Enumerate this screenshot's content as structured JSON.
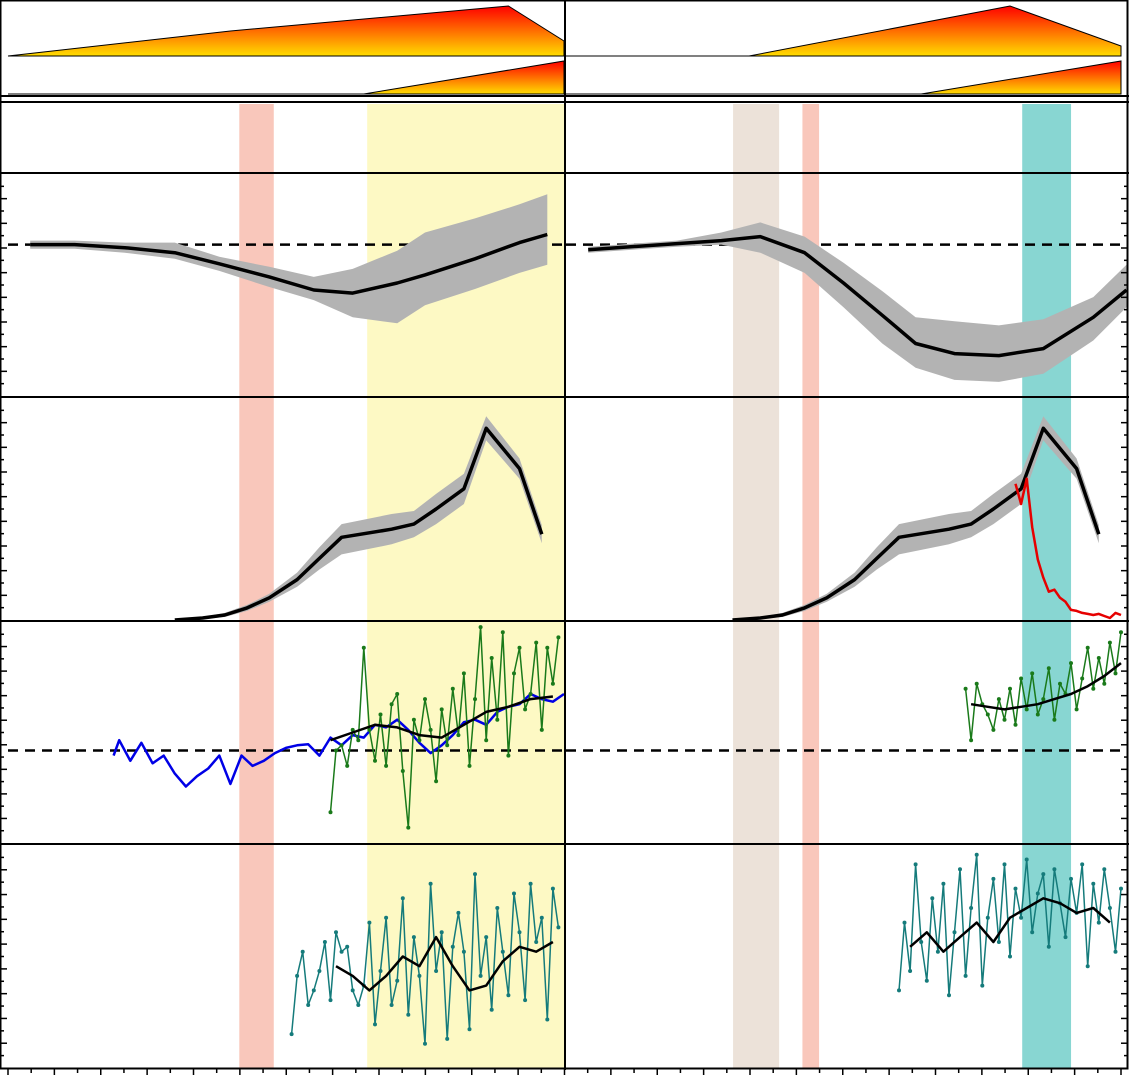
{
  "colors": {
    "frame": "#000000",
    "gradient_top": "#ff0000",
    "gradient_bottom": "#ffdd00",
    "band_salmon": "#f9c7bb",
    "band_yellow": "#fdf9c4",
    "band_beige": "#ece2d9",
    "band_teal": "#88d6d2",
    "mean_line": "#000000",
    "uncertainty": "#b3b3b3",
    "reference_line": "#000000",
    "blue_series": "#0000e6",
    "green_series": "#1a7a1a",
    "red_series": "#e60000",
    "teal_series": "#157b7b"
  },
  "chart_data": [
    {
      "type": "area",
      "panel": "left-top",
      "series": [
        {
          "x": [
            0,
            40,
            90,
            100
          ],
          "values": [
            0,
            0.5,
            1.0,
            0.3
          ]
        },
        {
          "x": [
            0,
            64,
            100
          ],
          "values": [
            0,
            0,
            1.0
          ]
        }
      ],
      "xlim": [
        0,
        100
      ]
    },
    {
      "type": "area",
      "panel": "right-top",
      "series": [
        {
          "x": [
            0,
            33,
            80,
            100
          ],
          "values": [
            0,
            0,
            1.0,
            0.2
          ]
        },
        {
          "x": [
            0,
            64,
            100
          ],
          "values": [
            0,
            0,
            1.0
          ]
        }
      ],
      "xlim": [
        0,
        100
      ]
    },
    {
      "type": "line",
      "panel": "left",
      "shaded_bands": [
        {
          "x0": 41.6,
          "x1": 47.8,
          "color": "salmon"
        },
        {
          "x0": 64.6,
          "x1": 100,
          "color": "yellow"
        }
      ],
      "series": [
        {
          "x": [
            4,
            12,
            21,
            30,
            38,
            47,
            55,
            62,
            70,
            75,
            84,
            92,
            97
          ],
          "values": [
            0,
            0,
            -0.03,
            -0.08,
            -0.19,
            -0.32,
            -0.45,
            -0.48,
            -0.38,
            -0.3,
            -0.14,
            0.02,
            0.1
          ],
          "lower": [
            -0.04,
            -0.04,
            -0.08,
            -0.14,
            -0.26,
            -0.42,
            -0.55,
            -0.72,
            -0.78,
            -0.6,
            -0.44,
            -0.28,
            -0.2
          ],
          "upper": [
            0.04,
            0.04,
            0.02,
            0.02,
            -0.12,
            -0.22,
            -0.32,
            -0.24,
            -0.06,
            0.12,
            0.26,
            0.4,
            0.5
          ]
        }
      ],
      "reference_y": 0,
      "ylim": [
        -1.5,
        0.7
      ]
    },
    {
      "type": "line",
      "panel": "right",
      "shaded_bands": [
        {
          "x0": 30.1,
          "x1": 38.4,
          "color": "beige"
        },
        {
          "x0": 42.6,
          "x1": 45.6,
          "color": "salmon"
        },
        {
          "x0": 82.2,
          "x1": 91,
          "color": "teal"
        }
      ],
      "series": [
        {
          "x": [
            4,
            20,
            28,
            35,
            43,
            50,
            57,
            63,
            70,
            78,
            86,
            95,
            101
          ],
          "values": [
            -0.05,
            0.01,
            0.04,
            0.08,
            -0.08,
            -0.38,
            -0.7,
            -0.98,
            -1.08,
            -1.1,
            -1.03,
            -0.72,
            -0.45
          ],
          "lower": [
            -0.08,
            -0.02,
            0.0,
            -0.08,
            -0.28,
            -0.62,
            -0.98,
            -1.22,
            -1.34,
            -1.36,
            -1.28,
            -0.95,
            -0.62
          ],
          "upper": [
            -0.02,
            0.04,
            0.12,
            0.22,
            0.08,
            -0.18,
            -0.46,
            -0.72,
            -0.76,
            -0.8,
            -0.74,
            -0.52,
            -0.2
          ]
        }
      ],
      "reference_y": 0,
      "ylim": [
        -1.5,
        0.7
      ]
    },
    {
      "type": "line",
      "panel": "left",
      "shaded_bands": [
        {
          "x0": 41.6,
          "x1": 47.8,
          "color": "salmon"
        },
        {
          "x0": 64.6,
          "x1": 100,
          "color": "yellow"
        }
      ],
      "series": [
        {
          "x": [
            30,
            35,
            39,
            43,
            47,
            52,
            56,
            60,
            69,
            73,
            77,
            82,
            86,
            92,
            96
          ],
          "values": [
            0,
            0.02,
            0.05,
            0.12,
            0.22,
            0.4,
            0.61,
            0.82,
            0.9,
            0.95,
            1.1,
            1.3,
            1.9,
            1.5,
            0.85
          ],
          "lower": [
            0,
            0.01,
            0.03,
            0.09,
            0.18,
            0.33,
            0.5,
            0.65,
            0.75,
            0.82,
            0.95,
            1.15,
            1.78,
            1.4,
            0.76
          ],
          "upper": [
            0,
            0.03,
            0.07,
            0.15,
            0.26,
            0.47,
            0.72,
            0.95,
            1.05,
            1.08,
            1.25,
            1.45,
            2.02,
            1.6,
            0.94
          ]
        }
      ],
      "ylim": [
        0,
        2.2
      ]
    },
    {
      "type": "line",
      "panel": "right",
      "shaded_bands": [
        {
          "x0": 30.1,
          "x1": 38.4,
          "color": "beige"
        },
        {
          "x0": 42.6,
          "x1": 45.6,
          "color": "salmon"
        },
        {
          "x0": 82.2,
          "x1": 91,
          "color": "teal"
        }
      ],
      "series": [
        {
          "x": [
            30,
            35,
            39,
            43,
            47,
            52,
            56,
            60,
            69,
            73,
            77,
            82,
            86,
            92,
            96
          ],
          "values": [
            0,
            0.02,
            0.05,
            0.12,
            0.22,
            0.4,
            0.61,
            0.82,
            0.9,
            0.95,
            1.1,
            1.3,
            1.9,
            1.5,
            0.85
          ],
          "lower": [
            0,
            0.01,
            0.03,
            0.09,
            0.18,
            0.33,
            0.5,
            0.65,
            0.75,
            0.82,
            0.95,
            1.15,
            1.78,
            1.4,
            0.76
          ],
          "upper": [
            0,
            0.03,
            0.07,
            0.15,
            0.26,
            0.47,
            0.72,
            0.95,
            1.05,
            1.08,
            1.25,
            1.45,
            2.02,
            1.6,
            0.94
          ]
        },
        {
          "x": [
            81,
            82,
            83,
            84,
            85,
            86,
            87,
            88,
            89,
            90,
            91,
            92,
            93,
            94,
            95,
            96,
            97,
            98,
            99,
            100
          ],
          "values": [
            1.35,
            1.15,
            1.4,
            0.92,
            0.6,
            0.42,
            0.28,
            0.3,
            0.22,
            0.18,
            0.1,
            0.09,
            0.07,
            0.06,
            0.05,
            0.06,
            0.04,
            0.02,
            0.07,
            0.05
          ]
        }
      ],
      "ylim": [
        0,
        2.2
      ]
    },
    {
      "type": "line",
      "panel": "left",
      "shaded_bands": [
        {
          "x0": 41.6,
          "x1": 47.8,
          "color": "salmon"
        },
        {
          "x0": 64.6,
          "x1": 100,
          "color": "yellow"
        }
      ],
      "series": [
        {
          "x": [
            19,
            20,
            22,
            24,
            26,
            28,
            30,
            32,
            34,
            36,
            38,
            40,
            42,
            44,
            46,
            48,
            50,
            52,
            54,
            56,
            58,
            60,
            62,
            64,
            66,
            68,
            70,
            72,
            74,
            76,
            78,
            80,
            82,
            84,
            86,
            88,
            90,
            92,
            94,
            96,
            98,
            100
          ],
          "values": [
            -0.1,
            0.2,
            -0.2,
            0.15,
            -0.25,
            -0.1,
            -0.45,
            -0.7,
            -0.5,
            -0.35,
            -0.1,
            -0.65,
            -0.1,
            -0.3,
            -0.2,
            -0.05,
            0.05,
            0.1,
            0.12,
            -0.1,
            0.25,
            0.1,
            0.3,
            0.25,
            0.5,
            0.45,
            0.6,
            0.4,
            0.15,
            -0.05,
            0.1,
            0.3,
            0.55,
            0.6,
            0.5,
            0.75,
            0.85,
            0.9,
            1.1,
            1.0,
            0.95,
            1.1
          ]
        },
        {
          "x": [
            58,
            59,
            60,
            61,
            62,
            63,
            64,
            65,
            66,
            67,
            68,
            69,
            70,
            71,
            72,
            73,
            74,
            75,
            76,
            77,
            78,
            79,
            80,
            81,
            82,
            83,
            84,
            85,
            86,
            87,
            88,
            89,
            90,
            91,
            92,
            93,
            94,
            95,
            96,
            97,
            98,
            99
          ],
          "values": [
            -1.2,
            0.0,
            0.1,
            -0.3,
            0.4,
            0.2,
            2.0,
            0.4,
            -0.2,
            0.7,
            -0.3,
            0.9,
            1.1,
            -0.4,
            -1.5,
            0.6,
            0.2,
            1.0,
            0.4,
            -0.6,
            0.8,
            0.1,
            1.2,
            0.3,
            1.5,
            -0.3,
            1.0,
            2.4,
            0.2,
            1.8,
            0.6,
            2.3,
            -0.1,
            1.5,
            2.0,
            0.8,
            1.1,
            2.1,
            0.4,
            2.0,
            1.3,
            2.2
          ]
        },
        {
          "x": [
            58,
            62,
            66,
            70,
            74,
            78,
            82,
            86,
            90,
            94,
            98
          ],
          "values": [
            0.2,
            0.35,
            0.5,
            0.45,
            0.3,
            0.25,
            0.5,
            0.75,
            0.85,
            1.0,
            1.05
          ]
        }
      ],
      "reference_y": 0,
      "ylim": [
        -1.8,
        2.5
      ]
    },
    {
      "type": "line",
      "panel": "right",
      "shaded_bands": [
        {
          "x0": 30.1,
          "x1": 38.4,
          "color": "beige"
        },
        {
          "x0": 42.6,
          "x1": 45.6,
          "color": "salmon"
        },
        {
          "x0": 82.2,
          "x1": 91,
          "color": "teal"
        }
      ],
      "series": [
        {
          "x": [
            72,
            73,
            74,
            75,
            76,
            77,
            78,
            79,
            80,
            81,
            82,
            83,
            84,
            85,
            86,
            87,
            88,
            89,
            90,
            91,
            92,
            93,
            94,
            95,
            96,
            97,
            98,
            99,
            100
          ],
          "values": [
            1.2,
            0.2,
            1.3,
            0.9,
            0.7,
            0.4,
            1.0,
            0.6,
            1.2,
            0.5,
            1.4,
            0.8,
            1.5,
            0.7,
            1.0,
            1.6,
            0.6,
            1.3,
            1.1,
            1.7,
            0.8,
            1.4,
            2.0,
            1.2,
            1.8,
            1.3,
            2.1,
            1.5,
            2.3
          ]
        },
        {
          "x": [
            73,
            76,
            79,
            82,
            85,
            88,
            91,
            94,
            97,
            100
          ],
          "values": [
            0.9,
            0.85,
            0.8,
            0.85,
            0.9,
            1.0,
            1.1,
            1.25,
            1.45,
            1.7
          ]
        }
      ],
      "reference_y": 0,
      "ylim": [
        -1.8,
        2.5
      ]
    },
    {
      "type": "line",
      "panel": "left",
      "shaded_bands": [
        {
          "x0": 41.6,
          "x1": 47.8,
          "color": "salmon"
        },
        {
          "x0": 64.6,
          "x1": 100,
          "color": "yellow"
        }
      ],
      "series": [
        {
          "x": [
            51,
            52,
            53,
            54,
            55,
            56,
            57,
            58,
            59,
            60,
            61,
            62,
            63,
            64,
            65,
            66,
            67,
            68,
            69,
            70,
            71,
            72,
            73,
            74,
            75,
            76,
            77,
            78,
            79,
            80,
            81,
            82,
            83,
            84,
            85,
            86,
            87,
            88,
            89,
            90,
            91,
            92,
            93,
            94,
            95,
            96,
            97,
            98,
            99
          ],
          "values": [
            -1.5,
            -0.3,
            0.2,
            -0.9,
            -0.6,
            -0.2,
            0.4,
            -0.8,
            0.6,
            0.2,
            0.3,
            -0.6,
            -0.9,
            -0.5,
            0.8,
            -1.3,
            -0.2,
            0.9,
            -0.9,
            -0.4,
            1.3,
            -1.1,
            0.5,
            -0.3,
            -1.7,
            1.6,
            -0.2,
            0.6,
            -1.6,
            0.3,
            1.0,
            0.2,
            -1.4,
            1.8,
            -0.3,
            0.5,
            -1.0,
            1.1,
            0.2,
            -0.7,
            1.4,
            0.6,
            -0.8,
            1.6,
            0.4,
            0.9,
            -1.2,
            1.5,
            0.7
          ]
        },
        {
          "x": [
            59,
            62,
            65,
            68,
            71,
            74,
            77,
            80,
            83,
            86,
            89,
            92,
            95,
            98
          ],
          "values": [
            -0.1,
            -0.3,
            -0.6,
            -0.3,
            0.1,
            -0.1,
            0.5,
            -0.1,
            -0.6,
            -0.5,
            0.0,
            0.3,
            0.2,
            0.4
          ]
        }
      ],
      "ylim": [
        -2.2,
        2.4
      ]
    },
    {
      "type": "line",
      "panel": "right",
      "shaded_bands": [
        {
          "x0": 30.1,
          "x1": 38.4,
          "color": "beige"
        },
        {
          "x0": 42.6,
          "x1": 45.6,
          "color": "salmon"
        },
        {
          "x0": 82.2,
          "x1": 91,
          "color": "teal"
        }
      ],
      "series": [
        {
          "x": [
            60,
            61,
            62,
            63,
            64,
            65,
            66,
            67,
            68,
            69,
            70,
            71,
            72,
            73,
            74,
            75,
            76,
            77,
            78,
            79,
            80,
            81,
            82,
            83,
            84,
            85,
            86,
            87,
            88,
            89,
            90,
            91,
            92,
            93,
            94,
            95,
            96,
            97,
            98,
            99,
            100
          ],
          "values": [
            -0.6,
            0.8,
            -0.2,
            2.0,
            0.4,
            -0.4,
            1.3,
            0.2,
            1.6,
            -0.7,
            0.6,
            1.9,
            -0.3,
            1.1,
            2.2,
            -0.5,
            0.9,
            1.7,
            0.4,
            2.0,
            0.1,
            1.5,
            0.9,
            2.1,
            0.6,
            1.4,
            1.8,
            0.3,
            1.9,
            1.2,
            0.5,
            1.7,
            1.0,
            2.0,
            -0.1,
            1.6,
            0.8,
            1.9,
            1.1,
            0.2,
            1.5
          ]
        },
        {
          "x": [
            62,
            65,
            68,
            71,
            74,
            77,
            80,
            83,
            86,
            89,
            92,
            95,
            98
          ],
          "values": [
            0.3,
            0.6,
            0.2,
            0.5,
            0.8,
            0.4,
            0.9,
            1.1,
            1.3,
            1.2,
            1.0,
            1.1,
            0.8
          ]
        }
      ],
      "ylim": [
        -2.2,
        2.4
      ]
    }
  ]
}
